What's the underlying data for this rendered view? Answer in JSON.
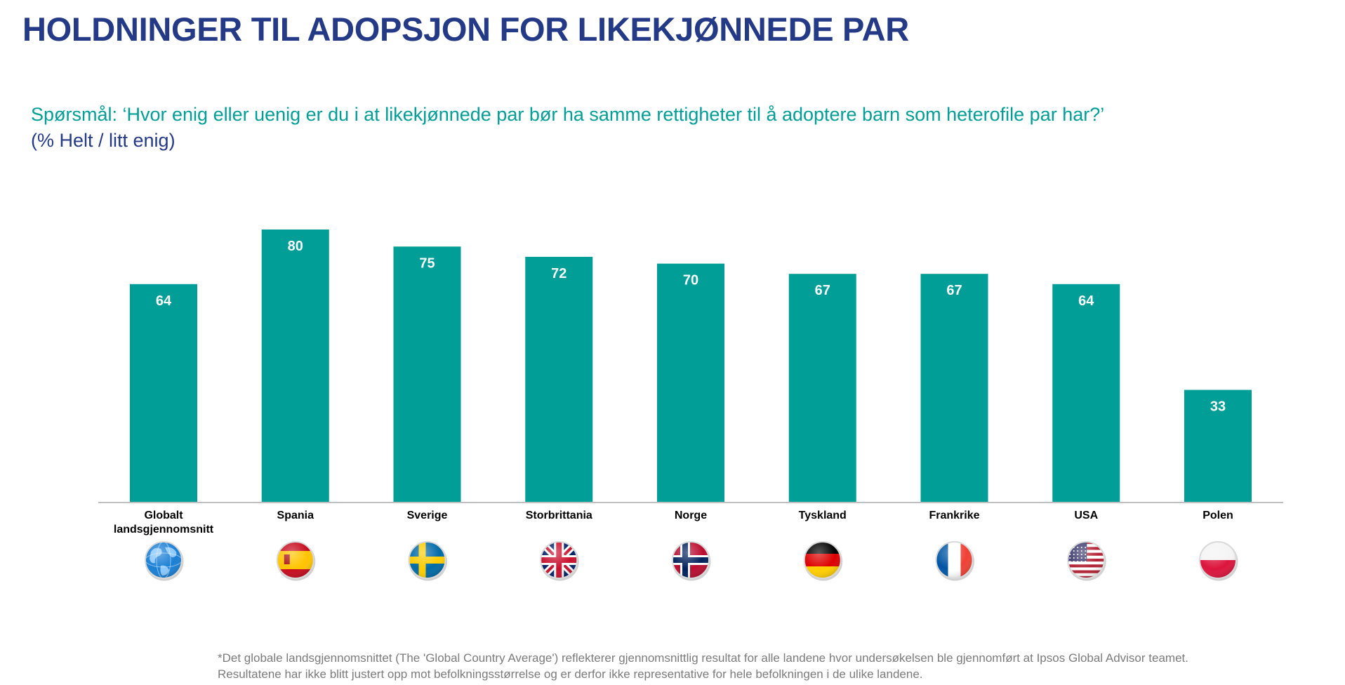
{
  "header": {
    "title": "HOLDNINGER TIL ADOPSJON FOR LIKEKJØNNEDE PAR",
    "question": "Spørsmål: ‘Hvor enig eller uenig er du i at likekjønnede par bør ha samme rettigheter til å adoptere barn som heterofile par har?’",
    "measure": "(% Helt / litt enig)"
  },
  "chart_data": {
    "type": "bar",
    "categories": [
      "Globalt landsgjennomsnitt",
      "Spania",
      "Sverige",
      "Storbrittania",
      "Norge",
      "Tyskland",
      "Frankrike",
      "USA",
      "Polen"
    ],
    "category_lines": [
      [
        "Globalt",
        "landsgjennomsnitt"
      ],
      [
        "Spania"
      ],
      [
        "Sverige"
      ],
      [
        "Storbrittania"
      ],
      [
        "Norge"
      ],
      [
        "Tyskland"
      ],
      [
        "Frankrike"
      ],
      [
        "USA"
      ],
      [
        "Polen"
      ]
    ],
    "values": [
      64,
      80,
      75,
      72,
      70,
      67,
      67,
      64,
      33
    ],
    "icons": [
      "globe-icon",
      "spain-flag-icon",
      "sweden-flag-icon",
      "uk-flag-icon",
      "norway-flag-icon",
      "germany-flag-icon",
      "france-flag-icon",
      "usa-flag-icon",
      "poland-flag-icon"
    ],
    "ylim": [
      0,
      80
    ],
    "grid": false,
    "legend": "none",
    "bar_color": "#009e96",
    "axis_color": "#bfbfbf"
  },
  "footnote": "*Det globale landsgjennomsnittet (The 'Global Country Average') reflekterer gjennomsnittlig resultat for alle landene hvor undersøkelsen ble gjennomført at Ipsos Global Advisor teamet. Resultatene har ikke blitt justert opp mot befolkningsstørrelse og er derfor ikke representative for hele befolkningen i de ulike landene."
}
